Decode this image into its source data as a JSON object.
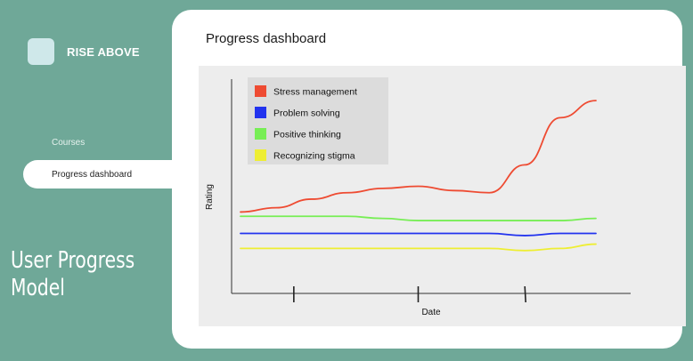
{
  "sidebar": {
    "logo_text": "RISE ABOVE",
    "items": [
      {
        "label": "Courses"
      },
      {
        "label": "Progress dashboard"
      }
    ]
  },
  "caption": "User Progress\nModel",
  "dashboard": {
    "title": "Progress dashboard"
  },
  "colors": {
    "background": "#6fa898",
    "card": "#ffffff",
    "chart_bg": "#ededed",
    "logo_box": "#cfe8ea"
  },
  "chart_data": {
    "type": "line",
    "xlabel": "Date",
    "ylabel": "Rating",
    "x": [
      0,
      10,
      20,
      30,
      40,
      50,
      60,
      70,
      80,
      90,
      100
    ],
    "ylim": [
      0,
      100
    ],
    "xlim": [
      0,
      100
    ],
    "grid": false,
    "legend_position": "top-left",
    "series": [
      {
        "name": "Stress management",
        "color": "#ee4b32",
        "values": [
          38,
          40,
          44,
          47,
          49,
          50,
          48,
          47,
          60,
          82,
          90
        ]
      },
      {
        "name": "Problem solving",
        "color": "#2233ee",
        "values": [
          28,
          28,
          28,
          28,
          28,
          28,
          28,
          28,
          27,
          28,
          28
        ]
      },
      {
        "name": "Positive thinking",
        "color": "#77ee55",
        "values": [
          36,
          36,
          36,
          36,
          35,
          34,
          34,
          34,
          34,
          34,
          35
        ]
      },
      {
        "name": "Recognizing stigma",
        "color": "#eeee33",
        "values": [
          21,
          21,
          21,
          21,
          21,
          21,
          21,
          21,
          20,
          21,
          23
        ]
      }
    ],
    "x_ticks": [
      15,
      50,
      80
    ]
  }
}
